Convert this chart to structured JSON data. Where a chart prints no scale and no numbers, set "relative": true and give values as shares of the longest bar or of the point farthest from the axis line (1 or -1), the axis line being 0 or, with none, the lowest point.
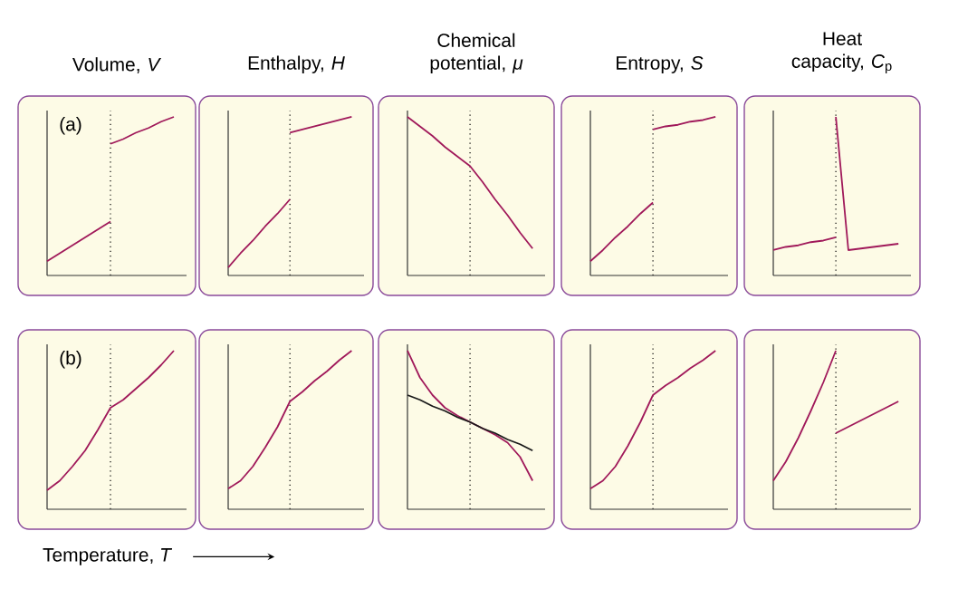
{
  "chart_data": [
    {
      "type": "line",
      "title": "Volume, *V*",
      "annotations": [
        "(a)"
      ],
      "relative": true,
      "categories": [
        null,
        null,
        null,
        null,
        null,
        null,
        null,
        null,
        null,
        null,
        null
      ],
      "series": [
        {
          "color": "#a0195a",
          "values": [
            0.09,
            0.14,
            0.19,
            0.24,
            0.29,
            0.34,
            null,
            null,
            null,
            null,
            null
          ]
        },
        {
          "color": "#a0195a",
          "values": [
            null,
            null,
            null,
            null,
            null,
            0.83,
            0.86,
            0.9,
            0.93,
            0.97,
            1.0
          ]
        }
      ]
    },
    {
      "type": "line",
      "title": "Enthalpy, *H*",
      "relative": true,
      "categories": [
        null,
        null,
        null,
        null,
        null,
        null,
        null,
        null,
        null,
        null,
        null
      ],
      "series": [
        {
          "color": "#a0195a",
          "values": [
            0.05,
            0.14,
            0.22,
            0.31,
            0.39,
            0.48,
            null,
            null,
            null,
            null,
            null
          ]
        },
        {
          "color": "#a0195a",
          "values": [
            null,
            null,
            null,
            null,
            null,
            0.9,
            0.92,
            0.94,
            0.96,
            0.98,
            1.0
          ]
        }
      ]
    },
    {
      "type": "line",
      "title": "Chemical potential, *μ*",
      "relative": true,
      "categories": [
        null,
        null,
        null,
        null,
        null,
        null,
        null,
        null,
        null,
        null,
        null
      ],
      "series": [
        {
          "color": "#a0195a",
          "values": [
            1.0,
            0.94,
            0.88,
            0.81,
            0.75,
            0.69,
            0.59,
            0.48,
            0.38,
            0.27,
            0.17
          ]
        }
      ]
    },
    {
      "type": "line",
      "title": "Entropy, *S*",
      "relative": true,
      "categories": [
        null,
        null,
        null,
        null,
        null,
        null,
        null,
        null,
        null,
        null,
        null
      ],
      "series": [
        {
          "color": "#a0195a",
          "values": [
            0.09,
            0.16,
            0.24,
            0.31,
            0.39,
            0.46,
            null,
            null,
            null,
            null,
            null
          ]
        },
        {
          "color": "#a0195a",
          "values": [
            null,
            null,
            null,
            null,
            null,
            0.92,
            0.94,
            0.95,
            0.97,
            0.98,
            1.0
          ]
        }
      ]
    },
    {
      "type": "line",
      "title": "Heat capacity, *C*$_{p}$",
      "relative": true,
      "categories": [
        null,
        null,
        null,
        null,
        null,
        null,
        null,
        null,
        null,
        null,
        null
      ],
      "series": [
        {
          "color": "#a0195a",
          "values": [
            0.16,
            0.18,
            0.19,
            0.21,
            0.22,
            0.24,
            null,
            null,
            null,
            null,
            null
          ]
        },
        {
          "color": "#a0195a",
          "values": [
            null,
            null,
            null,
            null,
            null,
            1.0,
            0.16,
            0.17,
            0.18,
            0.19,
            0.2
          ]
        }
      ]
    },
    {
      "type": "line",
      "annotations": [
        "(b)"
      ],
      "xlabel": "Temperature, *T*",
      "relative": true,
      "categories": [
        null,
        null,
        null,
        null,
        null,
        null,
        null,
        null,
        null,
        null,
        null
      ],
      "series": [
        {
          "color": "#a0195a",
          "values": [
            0.12,
            0.18,
            0.27,
            0.37,
            0.5,
            0.64,
            0.69,
            0.76,
            0.83,
            0.91,
            1.0
          ]
        }
      ]
    },
    {
      "type": "line",
      "relative": true,
      "categories": [
        null,
        null,
        null,
        null,
        null,
        null,
        null,
        null,
        null,
        null,
        null
      ],
      "series": [
        {
          "color": "#a0195a",
          "values": [
            0.13,
            0.18,
            0.27,
            0.39,
            0.52,
            0.68,
            0.74,
            0.81,
            0.87,
            0.94,
            1.0
          ]
        }
      ]
    },
    {
      "type": "line",
      "relative": true,
      "categories": [
        null,
        null,
        null,
        null,
        null,
        null,
        null,
        null,
        null,
        null,
        null
      ],
      "series": [
        {
          "color": "#a0195a",
          "values": [
            1.0,
            0.83,
            0.72,
            0.64,
            0.59,
            0.55,
            0.51,
            0.47,
            0.42,
            0.33,
            0.18
          ]
        },
        {
          "color": "#1a1a1a",
          "values": [
            0.72,
            0.69,
            0.65,
            0.62,
            0.58,
            0.55,
            0.51,
            0.48,
            0.44,
            0.41,
            0.37
          ]
        }
      ]
    },
    {
      "type": "line",
      "relative": true,
      "categories": [
        null,
        null,
        null,
        null,
        null,
        null,
        null,
        null,
        null,
        null,
        null
      ],
      "series": [
        {
          "color": "#a0195a",
          "values": [
            0.13,
            0.18,
            0.27,
            0.4,
            0.55,
            0.72,
            0.78,
            0.83,
            0.89,
            0.94,
            1.0
          ]
        }
      ]
    },
    {
      "type": "line",
      "relative": true,
      "categories": [
        null,
        null,
        null,
        null,
        null,
        null,
        null,
        null,
        null,
        null,
        null
      ],
      "series": [
        {
          "color": "#a0195a",
          "values": [
            0.18,
            0.3,
            0.45,
            0.62,
            0.8,
            1.0,
            null,
            null,
            null,
            null,
            null
          ]
        },
        {
          "color": "#a0195a",
          "values": [
            null,
            null,
            null,
            null,
            null,
            0.48,
            0.52,
            0.56,
            0.6,
            0.64,
            0.68
          ]
        }
      ]
    }
  ]
}
